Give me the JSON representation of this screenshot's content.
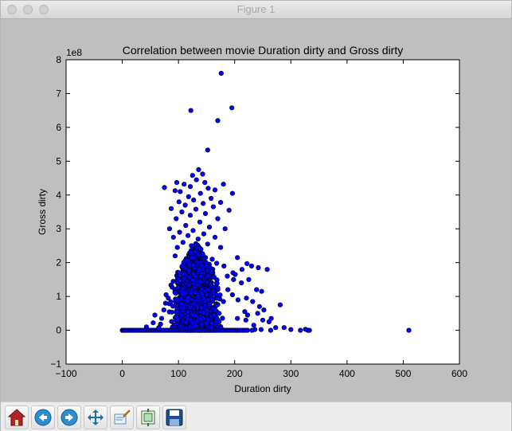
{
  "window": {
    "title": "Figure 1"
  },
  "toolbar": {
    "buttons": [
      {
        "name": "home-button",
        "icon": "home-icon"
      },
      {
        "name": "back-button",
        "icon": "arrow-left-icon"
      },
      {
        "name": "forward-button",
        "icon": "arrow-right-icon"
      },
      {
        "name": "pan-button",
        "icon": "move-arrows-icon"
      },
      {
        "name": "zoom-button",
        "icon": "zoom-rect-icon"
      },
      {
        "name": "subplots-button",
        "icon": "subplots-icon"
      },
      {
        "name": "save-button",
        "icon": "floppy-disk-icon"
      }
    ]
  },
  "chart_data": {
    "type": "scatter",
    "title": "Correlation between movie Duration dirty and Gross dirty",
    "xlabel": "Duration dirty",
    "ylabel": "Gross dirty",
    "y_scale_label": "1e8",
    "xlim": [
      -100,
      600
    ],
    "ylim": [
      -1,
      8
    ],
    "xticks": [
      -100,
      0,
      100,
      200,
      300,
      400,
      500,
      600
    ],
    "yticks": [
      -1,
      0,
      1,
      2,
      3,
      4,
      5,
      6,
      7,
      8
    ],
    "xtick_labels": [
      "−100",
      "0",
      "100",
      "200",
      "300",
      "400",
      "500",
      "600"
    ],
    "ytick_labels": [
      "−1",
      "0",
      "1",
      "2",
      "3",
      "4",
      "5",
      "6",
      "7",
      "8"
    ],
    "grid": false,
    "marker_color": "#0000ff",
    "points": [
      [
        176,
        7.6
      ],
      [
        122,
        6.5
      ],
      [
        195,
        6.58
      ],
      [
        170,
        6.2
      ],
      [
        152,
        5.33
      ],
      [
        136,
        4.75
      ],
      [
        143,
        4.62
      ],
      [
        125,
        4.58
      ],
      [
        132,
        4.45
      ],
      [
        97,
        4.37
      ],
      [
        147,
        4.37
      ],
      [
        110,
        4.32
      ],
      [
        180,
        4.32
      ],
      [
        121,
        4.25
      ],
      [
        75,
        4.22
      ],
      [
        153,
        4.2
      ],
      [
        94,
        4.13
      ],
      [
        165,
        4.15
      ],
      [
        103,
        4.1
      ],
      [
        139,
        4.05
      ],
      [
        196,
        4.05
      ],
      [
        118,
        3.95
      ],
      [
        158,
        3.9
      ],
      [
        127,
        3.85
      ],
      [
        101,
        3.8
      ],
      [
        144,
        3.75
      ],
      [
        175,
        3.78
      ],
      [
        112,
        3.7
      ],
      [
        162,
        3.65
      ],
      [
        87,
        3.6
      ],
      [
        131,
        3.58
      ],
      [
        190,
        3.55
      ],
      [
        106,
        3.5
      ],
      [
        148,
        3.45
      ],
      [
        121,
        3.4
      ],
      [
        170,
        3.3
      ],
      [
        96,
        3.3
      ],
      [
        138,
        3.2
      ],
      [
        113,
        3.1
      ],
      [
        155,
        3.05
      ],
      [
        84,
        3.0
      ],
      [
        183,
        3.0
      ],
      [
        126,
        2.95
      ],
      [
        102,
        2.9
      ],
      [
        145,
        2.85
      ],
      [
        117,
        2.8
      ],
      [
        165,
        2.75
      ],
      [
        91,
        2.75
      ],
      [
        135,
        2.7
      ],
      [
        108,
        2.6
      ],
      [
        152,
        2.55
      ],
      [
        123,
        2.5
      ],
      [
        98,
        2.45
      ],
      [
        175,
        2.45
      ],
      [
        140,
        2.4
      ],
      [
        205,
        2.15
      ],
      [
        222,
        1.97
      ],
      [
        230,
        1.9
      ],
      [
        242,
        1.85
      ],
      [
        213,
        1.8
      ],
      [
        197,
        1.7
      ],
      [
        168,
        1.98
      ],
      [
        181,
        1.9
      ],
      [
        94,
        2.2
      ],
      [
        160,
        2.1
      ],
      [
        258,
        1.8
      ],
      [
        201,
        1.65
      ],
      [
        187,
        1.6
      ],
      [
        225,
        1.5
      ],
      [
        198,
        1.5
      ],
      [
        212,
        1.4
      ],
      [
        239,
        1.2
      ],
      [
        248,
        1.15
      ],
      [
        170,
        1.25
      ],
      [
        188,
        1.2
      ],
      [
        196,
        1.05
      ],
      [
        221,
        0.95
      ],
      [
        206,
        0.9
      ],
      [
        232,
        0.85
      ],
      [
        180,
        0.85
      ],
      [
        252,
        0.6
      ],
      [
        218,
        0.55
      ],
      [
        241,
        0.5
      ],
      [
        223,
        0.45
      ],
      [
        250,
        0.3
      ],
      [
        261,
        0.25
      ],
      [
        220,
        0.3
      ],
      [
        234,
        0.15
      ],
      [
        281,
        0.75
      ],
      [
        244,
        0.7
      ],
      [
        265,
        0.35
      ],
      [
        205,
        0.35
      ],
      [
        288,
        0.08
      ],
      [
        273,
        0.08
      ],
      [
        300,
        0.02
      ],
      [
        330,
        0.0
      ],
      [
        326,
        0.03
      ],
      [
        333,
        0.0
      ],
      [
        510,
        0.0
      ],
      [
        317,
        0.0
      ],
      [
        236,
        0.02
      ],
      [
        264,
        0.0
      ],
      [
        247,
        0.02
      ],
      [
        231,
        0.0
      ],
      [
        58,
        0.45
      ],
      [
        55,
        0.22
      ],
      [
        43,
        0.1
      ],
      [
        74,
        0.6
      ],
      [
        77,
        0.8
      ],
      [
        82,
        0.95
      ],
      [
        78,
        1.05
      ],
      [
        68,
        0.18
      ],
      [
        70,
        0.35
      ],
      [
        65,
        0.08
      ],
      [
        0,
        0.0
      ],
      [
        2,
        0.0
      ],
      [
        4,
        0.0
      ],
      [
        6,
        0.0
      ],
      [
        9,
        0.0
      ],
      [
        12,
        0.0
      ],
      [
        14,
        0.0
      ],
      [
        17,
        0.0
      ],
      [
        20,
        0.0
      ],
      [
        23,
        0.0
      ],
      [
        26,
        0.0
      ],
      [
        29,
        0.0
      ],
      [
        32,
        0.0
      ],
      [
        35,
        0.0
      ],
      [
        38,
        0.0
      ],
      [
        41,
        0.0
      ],
      [
        44,
        0.0
      ],
      [
        47,
        0.0
      ],
      [
        50,
        0.0
      ],
      [
        53,
        0.0
      ],
      [
        56,
        0.0
      ],
      [
        59,
        0.0
      ],
      [
        62,
        0.0
      ],
      [
        65,
        0.0
      ],
      [
        68,
        0.0
      ],
      [
        71,
        0.0
      ],
      [
        74,
        0.0
      ],
      [
        77,
        0.0
      ],
      [
        80,
        0.0
      ],
      [
        83,
        0.0
      ],
      [
        86,
        0.0
      ],
      [
        89,
        0.0
      ],
      [
        92,
        0.0
      ],
      [
        95,
        0.0
      ],
      [
        98,
        0.0
      ],
      [
        101,
        0.0
      ],
      [
        104,
        0.0
      ],
      [
        107,
        0.0
      ],
      [
        110,
        0.0
      ],
      [
        113,
        0.0
      ],
      [
        116,
        0.0
      ],
      [
        119,
        0.0
      ],
      [
        122,
        0.0
      ],
      [
        125,
        0.0
      ],
      [
        128,
        0.0
      ],
      [
        131,
        0.0
      ],
      [
        134,
        0.0
      ],
      [
        137,
        0.0
      ],
      [
        140,
        0.0
      ],
      [
        143,
        0.0
      ],
      [
        146,
        0.0
      ],
      [
        149,
        0.0
      ],
      [
        152,
        0.0
      ],
      [
        155,
        0.0
      ],
      [
        158,
        0.0
      ],
      [
        161,
        0.0
      ],
      [
        164,
        0.0
      ],
      [
        167,
        0.0
      ],
      [
        170,
        0.0
      ],
      [
        173,
        0.0
      ],
      [
        176,
        0.0
      ],
      [
        179,
        0.0
      ],
      [
        182,
        0.0
      ],
      [
        185,
        0.0
      ],
      [
        188,
        0.0
      ],
      [
        191,
        0.0
      ],
      [
        194,
        0.0
      ],
      [
        197,
        0.0
      ],
      [
        200,
        0.0
      ],
      [
        203,
        0.0
      ],
      [
        206,
        0.0
      ],
      [
        209,
        0.0
      ],
      [
        213,
        0.0
      ],
      [
        216,
        0.0
      ],
      [
        219,
        0.0
      ],
      [
        223,
        0.0
      ]
    ],
    "dense_cloud": {
      "description_in_data_units": "dense core cloud between Duration 80-180, Gross 0-2.5",
      "x_range": [
        78,
        185
      ],
      "y_range": [
        0,
        2.6
      ],
      "count": 1400
    }
  }
}
